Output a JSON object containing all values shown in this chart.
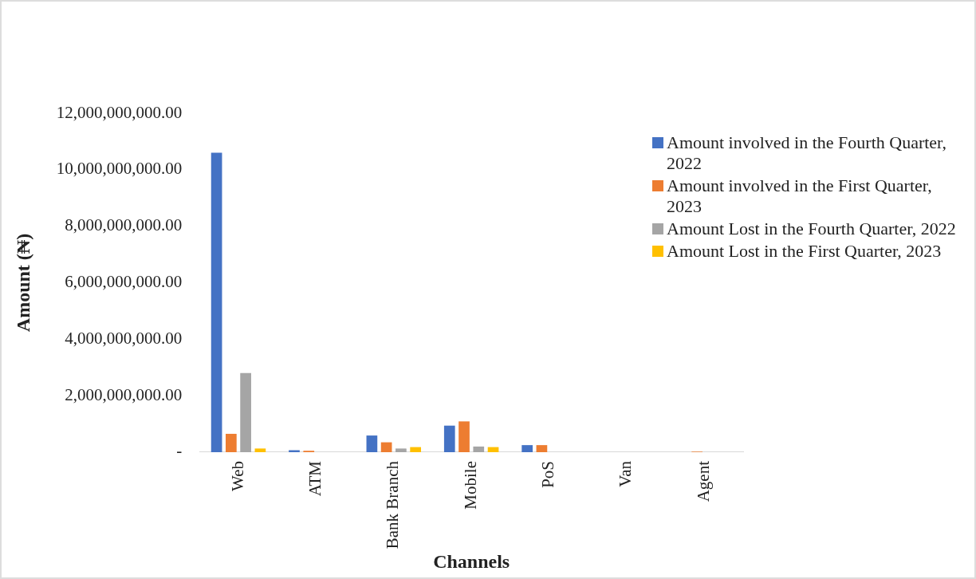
{
  "chart_data": {
    "type": "bar",
    "xlabel": "Channels",
    "ylabel": "Amount (₦)",
    "categories": [
      "Web",
      "ATM",
      "Bank Branch",
      "Mobile",
      "PoS",
      "Van",
      "Agent"
    ],
    "series": [
      {
        "name": "Amount involved in the Fourth Quarter, 2022",
        "color": "#4472c4",
        "values": [
          10600000000,
          70000000,
          590000000,
          940000000,
          250000000,
          0,
          0
        ]
      },
      {
        "name": "Amount involved in the First Quarter, 2023",
        "color": "#ed7d31",
        "values": [
          650000000,
          50000000,
          350000000,
          1090000000,
          250000000,
          0,
          20000000
        ]
      },
      {
        "name": "Amount Lost in the Fourth Quarter, 2022",
        "color": "#a5a5a5",
        "values": [
          2800000000,
          null,
          130000000,
          200000000,
          null,
          0,
          0
        ]
      },
      {
        "name": "Amount Lost in the First Quarter, 2023",
        "color": "#ffc000",
        "values": [
          130000000,
          null,
          180000000,
          180000000,
          null,
          0,
          0
        ]
      }
    ],
    "ylim": [
      0,
      12000000000
    ],
    "yticks": [
      {
        "value": 0,
        "label": "-"
      },
      {
        "value": 2000000000,
        "label": "2,000,000,000.00"
      },
      {
        "value": 4000000000,
        "label": "4,000,000,000.00"
      },
      {
        "value": 6000000000,
        "label": "6,000,000,000.00"
      },
      {
        "value": 8000000000,
        "label": "8,000,000,000.00"
      },
      {
        "value": 10000000000,
        "label": "10,000,000,000.00"
      },
      {
        "value": 12000000000,
        "label": "12,000,000,000.00"
      }
    ],
    "legend": "top right"
  }
}
